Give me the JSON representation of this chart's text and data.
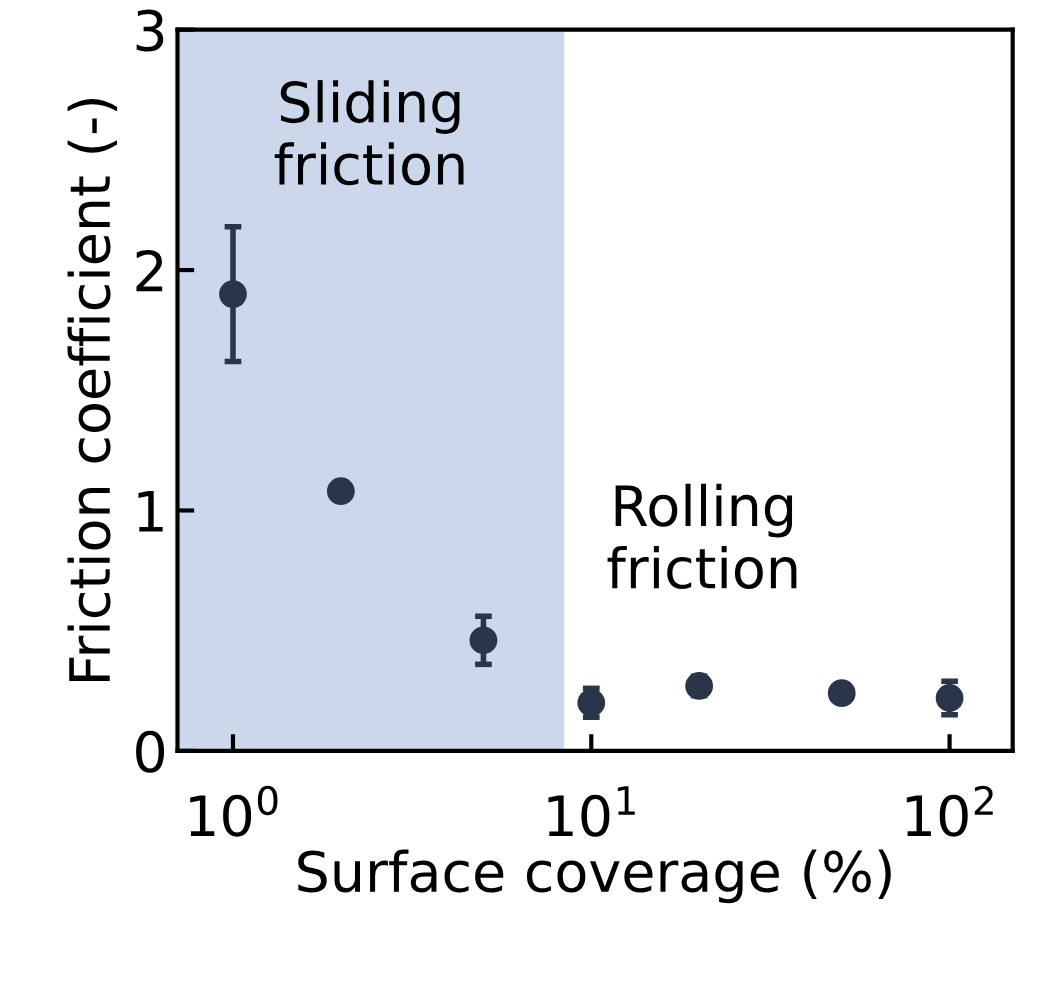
{
  "chart_data": {
    "type": "scatter",
    "xlabel": "Surface coverage (%)",
    "ylabel": "Friction coefficient (-)",
    "log": "x",
    "x": [
      1,
      2,
      5,
      10,
      20,
      50,
      100
    ],
    "values": [
      1.9,
      1.08,
      0.46,
      0.2,
      0.27,
      0.24,
      0.22
    ],
    "errors": [
      [
        1.62,
        2.18
      ],
      null,
      [
        0.36,
        0.56
      ],
      [
        0.14,
        0.26
      ],
      [
        0.23,
        0.31
      ],
      [
        0.21,
        0.27
      ],
      [
        0.15,
        0.29
      ]
    ],
    "color": "#2a3549",
    "marker": "circle",
    "xlim": [
      0.7,
      150
    ],
    "ylim": [
      0,
      3
    ],
    "xticks": [
      {
        "value": 1,
        "label": "10$^{0}$"
      },
      {
        "value": 10,
        "label": "10$^{1}$"
      },
      {
        "value": 100,
        "label": "10$^{2}$"
      }
    ],
    "yticks": [
      0,
      1,
      2,
      3
    ],
    "bands": [
      {
        "axis": "x",
        "from": 0.7,
        "to": 8.4,
        "label": "Sliding\nfriction",
        "color": "#cdd7ec"
      }
    ],
    "annotations": [
      "Rolling\nfriction"
    ],
    "grid": false,
    "legend": false
  }
}
